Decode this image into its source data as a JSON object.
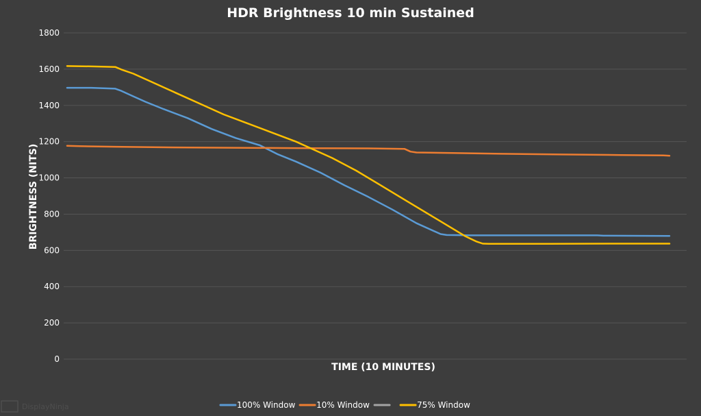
{
  "chart_data": {
    "type": "line",
    "title": "HDR Brightness  10 min Sustained",
    "xlabel": "TIME (10 MINUTES)",
    "ylabel": "BRIGHTNESS (NITS)",
    "xlim": [
      0,
      100
    ],
    "ylim": [
      0,
      1800
    ],
    "yticks": [
      0,
      200,
      400,
      600,
      800,
      1000,
      1200,
      1400,
      1600,
      1800
    ],
    "grid": true,
    "legend_position": "bottom-center",
    "series": [
      {
        "name": "100% Window",
        "color": "#5b9bd5",
        "x": [
          0,
          4,
          8,
          9,
          11,
          13,
          16,
          20,
          24,
          28,
          32,
          35,
          38,
          42,
          46,
          50,
          54,
          58,
          62,
          63,
          67,
          72,
          77,
          88,
          89,
          100
        ],
        "y": [
          1497,
          1497,
          1492,
          1480,
          1450,
          1420,
          1380,
          1330,
          1270,
          1220,
          1180,
          1130,
          1090,
          1030,
          960,
          895,
          825,
          750,
          690,
          685,
          683,
          683,
          683,
          683,
          681,
          680
        ]
      },
      {
        "name": "10% Window",
        "color": "#ed7d31",
        "x": [
          0,
          2,
          8,
          18,
          30,
          40,
          50,
          56,
          57,
          58,
          64,
          72,
          82,
          92,
          99,
          100
        ],
        "y": [
          1177,
          1175,
          1172,
          1168,
          1166,
          1164,
          1163,
          1160,
          1145,
          1140,
          1137,
          1133,
          1129,
          1126,
          1124,
          1122
        ]
      },
      {
        "name": "",
        "color": "#a5a5a5",
        "x": [],
        "y": []
      },
      {
        "name": "75% Window",
        "color": "#ffc000",
        "x": [
          0,
          4,
          8,
          9,
          11,
          14,
          18,
          22,
          26,
          30,
          34,
          38,
          40,
          44,
          48,
          52,
          56,
          60,
          64,
          66,
          68,
          69,
          70,
          75,
          80,
          90,
          100
        ],
        "y": [
          1617,
          1615,
          1612,
          1598,
          1575,
          1530,
          1470,
          1410,
          1350,
          1300,
          1250,
          1200,
          1170,
          1110,
          1040,
          960,
          880,
          800,
          720,
          680,
          648,
          637,
          636,
          636,
          636,
          637,
          637
        ]
      }
    ]
  },
  "watermark": {
    "text": "DisplayNinja"
  }
}
